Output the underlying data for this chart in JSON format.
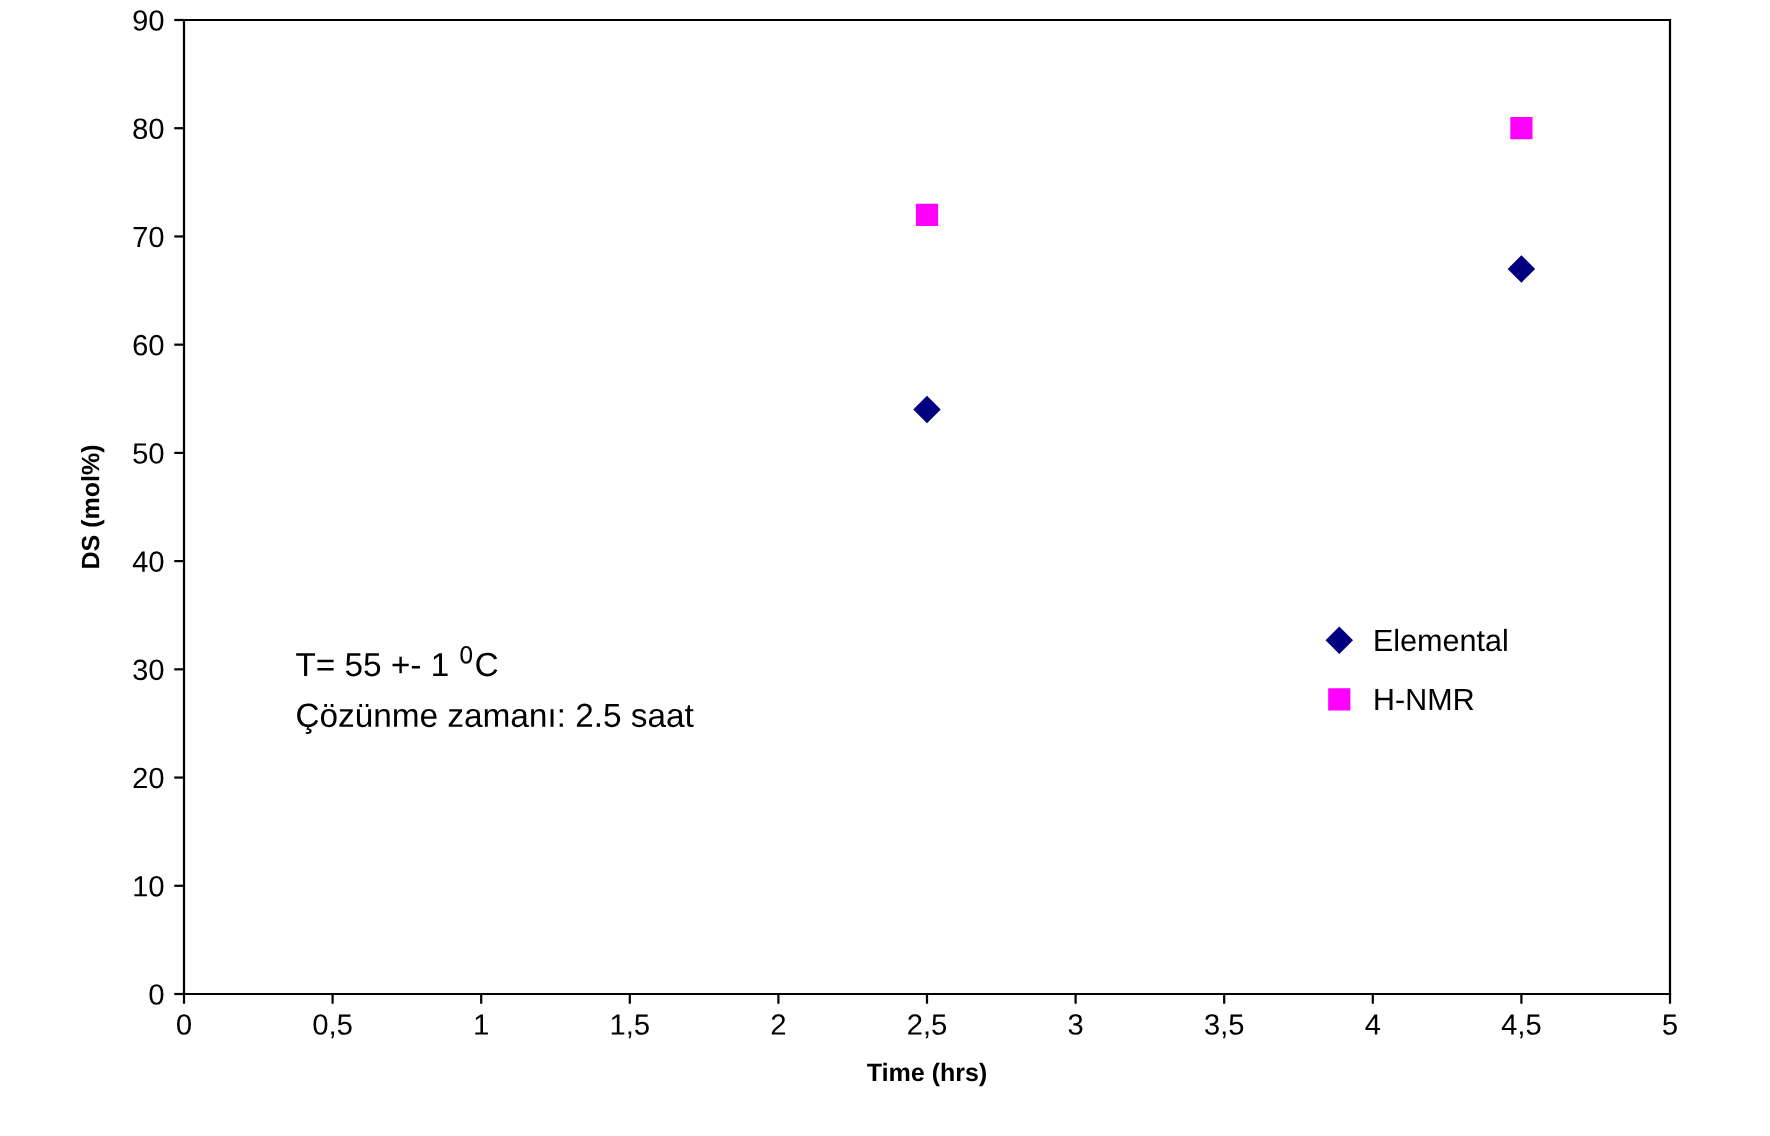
{
  "chart_data": {
    "type": "scatter",
    "xlabel": "Time (hrs)",
    "ylabel": "DS (mol%)",
    "x": [
      2.5,
      4.5
    ],
    "xlim": [
      0,
      5
    ],
    "xticks": [
      0,
      {
        "value": 0.5,
        "label": "0,5"
      },
      1,
      {
        "value": 1.5,
        "label": "1,5"
      },
      2,
      {
        "value": 2.5,
        "label": "2,5"
      },
      3,
      {
        "value": 3.5,
        "label": "3,5"
      },
      4,
      {
        "value": 4.5,
        "label": "4,5"
      },
      5
    ],
    "ylim": [
      0,
      90
    ],
    "yticks": [
      0,
      10,
      20,
      30,
      40,
      50,
      60,
      70,
      80,
      90
    ],
    "grid": false,
    "legend": "right",
    "annotations": [
      "T= 55 +- 1 $^{0}$C",
      "Çözünme zamanı: 2.5 saat"
    ],
    "series": [
      {
        "name": "Elemental",
        "color": "#000080",
        "marker": "diamond",
        "values": [
          54,
          67
        ]
      },
      {
        "name": "H-NMR",
        "color": "#ff00ff",
        "marker": "square",
        "values": [
          72,
          80
        ]
      }
    ]
  }
}
